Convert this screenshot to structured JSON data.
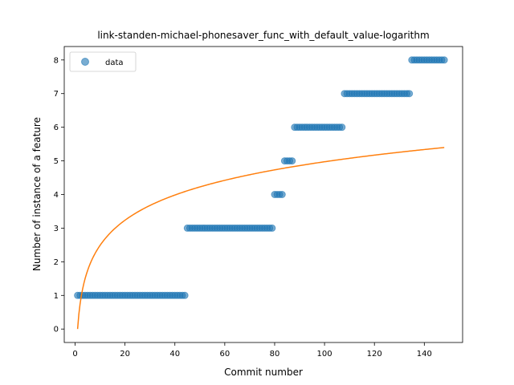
{
  "chart_data": {
    "type": "scatter",
    "title": "link-standen-michael-phonesaver_func_with_default_value-logarithm",
    "xlabel": "Commit number",
    "ylabel": "Number of instance of a feature",
    "xlim": [
      -4.35,
      155.35
    ],
    "ylim": [
      -0.4,
      8.4
    ],
    "xticks": [
      0,
      20,
      40,
      60,
      80,
      100,
      120,
      140
    ],
    "yticks": [
      0,
      1,
      2,
      3,
      4,
      5,
      6,
      7,
      8
    ],
    "grid": false,
    "legend_position": "top-left",
    "series": [
      {
        "name": "data",
        "kind": "scatter",
        "color": "#1f77b4",
        "segments": [
          {
            "x_from": 1,
            "x_to": 44,
            "y": 1
          },
          {
            "x_from": 45,
            "x_to": 79,
            "y": 3
          },
          {
            "x_from": 80,
            "x_to": 83,
            "y": 4
          },
          {
            "x_from": 84,
            "x_to": 87,
            "y": 5
          },
          {
            "x_from": 88,
            "x_to": 107,
            "y": 6
          },
          {
            "x_from": 108,
            "x_to": 134,
            "y": 7
          },
          {
            "x_from": 135,
            "x_to": 148,
            "y": 8
          }
        ]
      },
      {
        "name": "",
        "kind": "line",
        "color": "#ff7f0e",
        "model": "logarithmic",
        "equation": "y = 1.08 * ln(x)",
        "coefficient": 1.08,
        "x_range": [
          1,
          148
        ]
      }
    ]
  }
}
